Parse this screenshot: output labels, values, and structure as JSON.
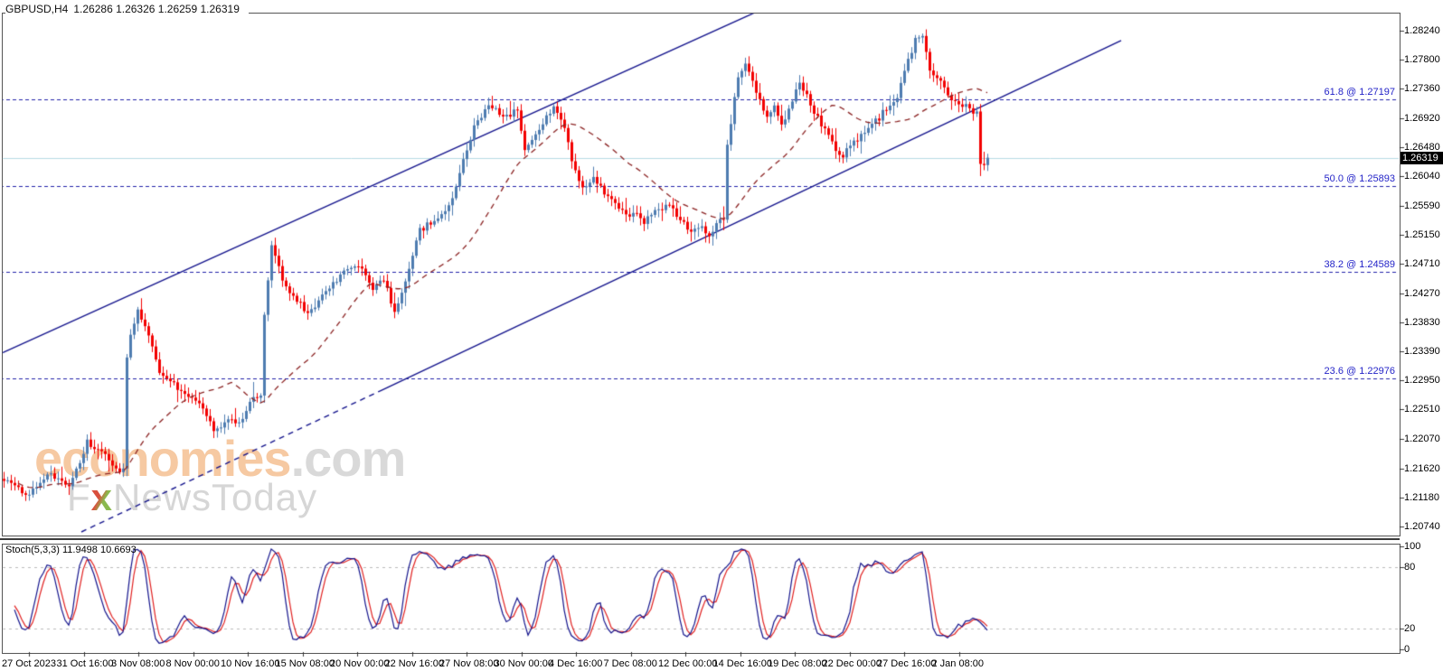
{
  "header": {
    "symbol_timeframe": "GBPUSD,H4",
    "ohlc_line": "1.26286 1.26326 1.26259 1.26319"
  },
  "watermark": {
    "brand": "economies",
    "tld": ".com",
    "tagline_f": "F",
    "tagline_x": "x",
    "tagline_rest": "NewsToday"
  },
  "chart_data": {
    "type": "candlestick",
    "symbol": "GBPUSD",
    "timeframe": "H4",
    "current_ohlc": {
      "open": "1.26286",
      "high": "1.26326",
      "low": "1.26259",
      "close": "1.26319"
    },
    "price_axis": {
      "ticks": [
        "1.28240",
        "1.27800",
        "1.27360",
        "1.26920",
        "1.26480",
        "1.26040",
        "1.25590",
        "1.25150",
        "1.24710",
        "1.24270",
        "1.23830",
        "1.23390",
        "1.22950",
        "1.22510",
        "1.22070",
        "1.21620",
        "1.21180",
        "1.20740"
      ],
      "ylim": [
        1.2074,
        1.2824
      ],
      "last_price": "1.26319"
    },
    "time_axis": {
      "labels": [
        "27 Oct 2023",
        "31 Oct 16:00",
        "3 Nov 08:00",
        "8 Nov 00:00",
        "10 Nov 16:00",
        "15 Nov 08:00",
        "20 Nov 00:00",
        "22 Nov 16:00",
        "27 Nov 08:00",
        "30 Nov 00:00",
        "4 Dec 16:00",
        "7 Dec 08:00",
        "12 Dec 00:00",
        "14 Dec 16:00",
        "19 Dec 08:00",
        "22 Dec 00:00",
        "27 Dec 16:00",
        "2 Jan 08:00"
      ]
    },
    "fib_levels": [
      {
        "label": "61.8 @ 1.27197",
        "ratio": "61.8",
        "price": 1.27197
      },
      {
        "label": "50.0 @ 1.25893",
        "ratio": "50.0",
        "price": 1.25893
      },
      {
        "label": "38.2 @ 1.24589",
        "ratio": "38.2",
        "price": 1.24589
      },
      {
        "label": "23.6 @ 1.22976",
        "ratio": "23.6",
        "price": 1.22976
      }
    ],
    "trendlines": [
      {
        "name": "channel-upper",
        "i1": -1,
        "p1": 1.2335,
        "i2": 211,
        "p2": 1.28595,
        "style": "solid"
      },
      {
        "name": "channel-lower-start",
        "i1": 21.5,
        "p1": 1.20658,
        "i2": 104,
        "p2": 1.22789,
        "style": "dashed"
      },
      {
        "name": "channel-lower",
        "i1": 104,
        "p1": 1.22789,
        "i2": 309,
        "p2": 1.2809,
        "style": "solid"
      }
    ],
    "candles": {
      "count": 273,
      "close_path_anchors": [
        [
          0,
          1.2146
        ],
        [
          6,
          1.2122
        ],
        [
          13,
          1.2153
        ],
        [
          18,
          1.2133
        ],
        [
          23,
          1.2201
        ],
        [
          28,
          1.218
        ],
        [
          32,
          1.216
        ],
        [
          33,
          1.2165
        ],
        [
          34,
          1.233
        ],
        [
          35,
          1.236
        ],
        [
          37,
          1.2399
        ],
        [
          39,
          1.2379
        ],
        [
          43,
          1.2304
        ],
        [
          47,
          1.229
        ],
        [
          50,
          1.2276
        ],
        [
          54,
          1.2262
        ],
        [
          58,
          1.2222
        ],
        [
          62,
          1.2235
        ],
        [
          65,
          1.2228
        ],
        [
          67,
          1.2249
        ],
        [
          69,
          1.2269
        ],
        [
          71,
          1.2269
        ],
        [
          72,
          1.2399
        ],
        [
          74,
          1.2495
        ],
        [
          77,
          1.2447
        ],
        [
          80,
          1.242
        ],
        [
          84,
          1.2399
        ],
        [
          88,
          1.242
        ],
        [
          92,
          1.2447
        ],
        [
          95,
          1.2467
        ],
        [
          99,
          1.2461
        ],
        [
          102,
          1.2433
        ],
        [
          105,
          1.2447
        ],
        [
          108,
          1.2399
        ],
        [
          112,
          1.2461
        ],
        [
          115,
          1.2522
        ],
        [
          119,
          1.2536
        ],
        [
          123,
          1.2556
        ],
        [
          127,
          1.2625
        ],
        [
          130,
          1.2679
        ],
        [
          134,
          1.2713
        ],
        [
          137,
          1.27
        ],
        [
          139,
          1.2693
        ],
        [
          142,
          1.2706
        ],
        [
          144,
          1.2645
        ],
        [
          147,
          1.2665
        ],
        [
          149,
          1.2686
        ],
        [
          152,
          1.2709
        ],
        [
          155,
          1.2679
        ],
        [
          157,
          1.2631
        ],
        [
          160,
          1.2584
        ],
        [
          163,
          1.2604
        ],
        [
          166,
          1.2577
        ],
        [
          169,
          1.2563
        ],
        [
          172,
          1.2543
        ],
        [
          174,
          1.2549
        ],
        [
          177,
          1.2536
        ],
        [
          180,
          1.2549
        ],
        [
          184,
          1.2559
        ],
        [
          187,
          1.2536
        ],
        [
          190,
          1.2518
        ],
        [
          193,
          1.2529
        ],
        [
          195,
          1.2512
        ],
        [
          198,
          1.2543
        ],
        [
          199,
          1.254
        ],
        [
          200,
          1.2652
        ],
        [
          203,
          1.2754
        ],
        [
          205,
          1.2775
        ],
        [
          207,
          1.2747
        ],
        [
          209,
          1.272
        ],
        [
          211,
          1.2693
        ],
        [
          213,
          1.2706
        ],
        [
          215,
          1.2679
        ],
        [
          218,
          1.272
        ],
        [
          220,
          1.2747
        ],
        [
          223,
          1.2713
        ],
        [
          225,
          1.2693
        ],
        [
          228,
          1.2665
        ],
        [
          230,
          1.2645
        ],
        [
          232,
          1.2631
        ],
        [
          234,
          1.2652
        ],
        [
          237,
          1.2665
        ],
        [
          239,
          1.2679
        ],
        [
          242,
          1.2693
        ],
        [
          244,
          1.2706
        ],
        [
          247,
          1.2727
        ],
        [
          249,
          1.2761
        ],
        [
          252,
          1.2809
        ],
        [
          254,
          1.2816
        ],
        [
          256,
          1.2768
        ],
        [
          259,
          1.2747
        ],
        [
          261,
          1.2727
        ],
        [
          264,
          1.2717
        ],
        [
          266,
          1.2709
        ],
        [
          268,
          1.27
        ],
        [
          269,
          1.27
        ],
        [
          270,
          1.2627
        ],
        [
          271,
          1.2624
        ],
        [
          272,
          1.26319
        ]
      ],
      "synthesis": {
        "seed": 9,
        "close_jitter": 0.001,
        "wick_base": 0.0003,
        "wick_rand": 0.0009,
        "wick_spike_prob": 0.12,
        "wick_spike": 0.0012
      }
    },
    "moving_average": {
      "period": 30,
      "style": "dashed"
    },
    "stochastic": {
      "label": "Stoch(5,3,3) 11.9498 10.6693",
      "k_period": 5,
      "k_smooth": 3,
      "d_period": 3,
      "k_last": 11.9498,
      "d_last": 10.6693,
      "levels": [
        80,
        20
      ],
      "scale_labels": [
        "100",
        "80",
        "20",
        "0"
      ],
      "ylim": [
        0,
        100
      ]
    },
    "colors": {
      "bull": "#4e7cb0",
      "bear": "#f20000",
      "ma": "#8b2323",
      "trendline": "#14148c",
      "fib_line": "#2121a8",
      "fib_text": "#2424c8",
      "current_price_line": "#b7dbe4",
      "stoch_k": "#14148c",
      "stoch_d": "#e01f1f",
      "stoch_level_dash": "#bbbbbb",
      "axis_text": "#000000",
      "last_price_bg": "#000000",
      "last_price_text": "#ffffff"
    }
  }
}
